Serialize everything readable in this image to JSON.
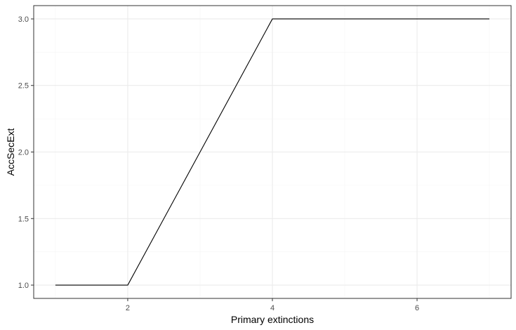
{
  "chart_data": {
    "type": "line",
    "title": "",
    "xlabel": "Primary extinctions",
    "ylabel": "AccSecExt",
    "x": [
      1,
      2,
      3,
      4,
      5,
      6,
      7
    ],
    "series": [
      {
        "values": [
          1,
          1,
          2,
          3,
          3,
          3,
          3
        ]
      }
    ],
    "xlim": [
      0.7,
      7.3
    ],
    "ylim": [
      0.9,
      3.1
    ],
    "x_ticks": [
      2,
      4,
      6
    ],
    "x_tick_labels": [
      "2",
      "4",
      "6"
    ],
    "y_ticks": [
      1.0,
      1.5,
      2.0,
      2.5,
      3.0
    ],
    "y_tick_labels": [
      "1.0",
      "1.5",
      "2.0",
      "2.5",
      "3.0"
    ],
    "grid": true,
    "legend": "none",
    "colors": {
      "line": "#000000",
      "grid_major": "#ebebeb",
      "grid_minor": "#f5f5f5",
      "panel_border": "#333333",
      "tick_text": "#4d4d4d"
    }
  }
}
